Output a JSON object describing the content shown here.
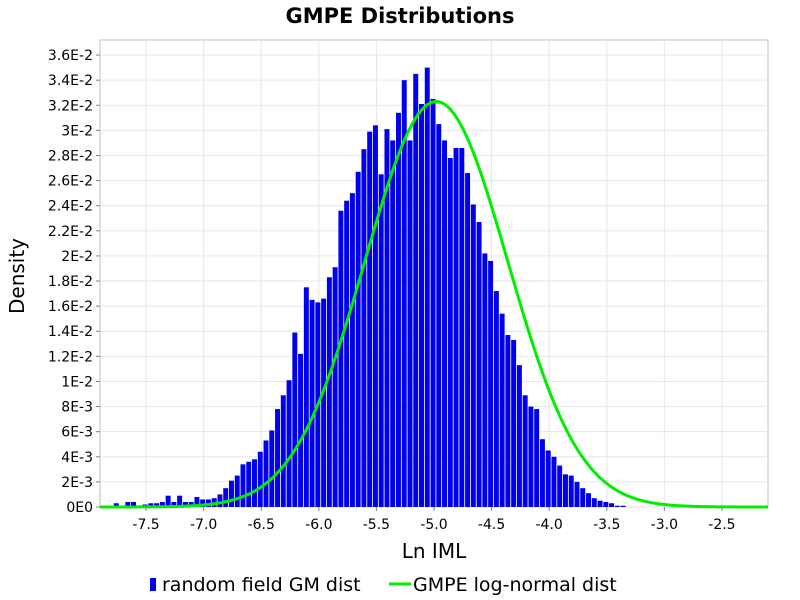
{
  "chart_data": {
    "type": "bar",
    "title": "GMPE Distributions",
    "xlabel": "Ln IML",
    "ylabel": "Density",
    "xlim": [
      -7.9,
      -2.1
    ],
    "ylim": [
      0,
      0.0372
    ],
    "grid": true,
    "legend_placement": "bottom",
    "x_ticks": [
      {
        "value": -7.5,
        "label": "-7.5"
      },
      {
        "value": -7.0,
        "label": "-7.0"
      },
      {
        "value": -6.5,
        "label": "-6.5"
      },
      {
        "value": -6.0,
        "label": "-6.0"
      },
      {
        "value": -5.5,
        "label": "-5.5"
      },
      {
        "value": -5.0,
        "label": "-5.0"
      },
      {
        "value": -4.5,
        "label": "-4.5"
      },
      {
        "value": -4.0,
        "label": "-4.0"
      },
      {
        "value": -3.5,
        "label": "-3.5"
      },
      {
        "value": -3.0,
        "label": "-3.0"
      },
      {
        "value": -2.5,
        "label": "-2.5"
      }
    ],
    "y_ticks": [
      {
        "value": 0,
        "label": "0E0"
      },
      {
        "value": 0.002,
        "label": "2E-3"
      },
      {
        "value": 0.004,
        "label": "4E-3"
      },
      {
        "value": 0.006,
        "label": "6E-3"
      },
      {
        "value": 0.008,
        "label": "8E-3"
      },
      {
        "value": 0.01,
        "label": "1E-2"
      },
      {
        "value": 0.012,
        "label": "1.2E-2"
      },
      {
        "value": 0.014,
        "label": "1.4E-2"
      },
      {
        "value": 0.016,
        "label": "1.6E-2"
      },
      {
        "value": 0.018,
        "label": "1.8E-2"
      },
      {
        "value": 0.02,
        "label": "2E-2"
      },
      {
        "value": 0.022,
        "label": "2.2E-2"
      },
      {
        "value": 0.024,
        "label": "2.4E-2"
      },
      {
        "value": 0.026,
        "label": "2.6E-2"
      },
      {
        "value": 0.028,
        "label": "2.8E-2"
      },
      {
        "value": 0.03,
        "label": "3E-2"
      },
      {
        "value": 0.032,
        "label": "3.2E-2"
      },
      {
        "value": 0.034,
        "label": "3.4E-2"
      },
      {
        "value": 0.036,
        "label": "3.6E-2"
      }
    ],
    "histogram": {
      "name": "random field GM dist",
      "color": "#0000ee",
      "bin_width": 0.05,
      "x_start": -7.78,
      "values": [
        0.0003,
        0.0001,
        0.0004,
        0.0004,
        0.0001,
        0.0002,
        0.0003,
        0.0003,
        0.0004,
        0.0009,
        0.0004,
        0.0009,
        0.0004,
        0.0004,
        0.0008,
        0.0006,
        0.0006,
        0.0007,
        0.001,
        0.0015,
        0.0021,
        0.0025,
        0.0034,
        0.0036,
        0.0038,
        0.0044,
        0.0053,
        0.0061,
        0.0078,
        0.0089,
        0.0101,
        0.0139,
        0.0122,
        0.0175,
        0.0165,
        0.0163,
        0.0166,
        0.0183,
        0.0191,
        0.0236,
        0.0244,
        0.025,
        0.0267,
        0.0285,
        0.0299,
        0.0304,
        0.0265,
        0.0301,
        0.0292,
        0.0314,
        0.034,
        0.0292,
        0.0345,
        0.0321,
        0.035,
        0.0325,
        0.0305,
        0.0292,
        0.0278,
        0.0286,
        0.0286,
        0.0266,
        0.0241,
        0.0227,
        0.0202,
        0.0196,
        0.0172,
        0.0154,
        0.0137,
        0.0133,
        0.0113,
        0.0089,
        0.008,
        0.0078,
        0.0054,
        0.0045,
        0.004,
        0.0033,
        0.0026,
        0.0025,
        0.002,
        0.0015,
        0.0011,
        0.0007,
        0.0005,
        0.0004,
        0.0003,
        0.0001,
        0.0001
      ]
    },
    "curve": {
      "name": "GMPE log-normal dist",
      "color": "#00ee00",
      "mean": -4.98,
      "std": 0.62,
      "peak": 0.0323
    }
  },
  "legend": {
    "items": [
      {
        "label": "random field GM dist",
        "color": "#0000ee"
      },
      {
        "label": "GMPE log-normal dist",
        "color": "#00ee00"
      }
    ]
  }
}
